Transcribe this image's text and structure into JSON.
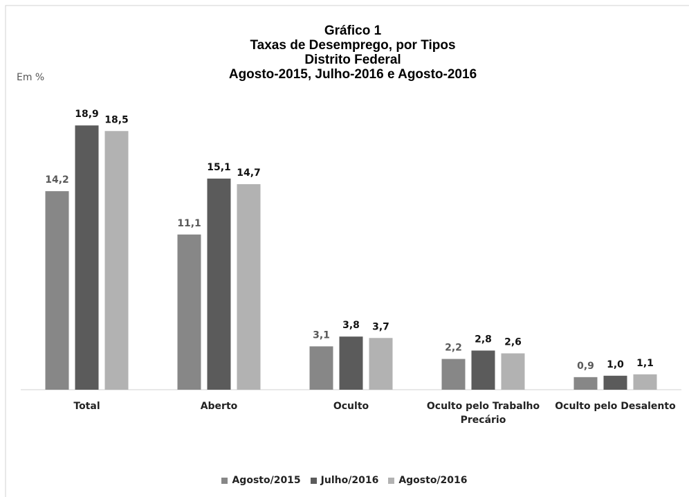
{
  "chart_data": {
    "type": "bar",
    "title": [
      "Gráfico 1",
      "Taxas de Desemprego, por Tipos",
      "Distrito Federal",
      "Agosto-2015, Julho-2016 e Agosto-2016"
    ],
    "y_label": "Em %",
    "categories": [
      "Total",
      "Aberto",
      "Oculto",
      "Oculto pelo Trabalho Precário",
      "Oculto pelo Desalento"
    ],
    "series": [
      {
        "name": "Agosto/2015",
        "color": "#878787",
        "values": [
          14.2,
          11.1,
          3.1,
          2.2,
          0.9
        ],
        "value_labels": [
          "14,2",
          "11,1",
          "3,1",
          "2,2",
          "0,9"
        ]
      },
      {
        "name": "Julho/2016",
        "color": "#5b5b5b",
        "values": [
          18.9,
          15.1,
          3.8,
          2.8,
          1.0
        ],
        "value_labels": [
          "18,9",
          "15,1",
          "3,8",
          "2,8",
          "1,0"
        ]
      },
      {
        "name": "Agosto/2016",
        "color": "#b2b2b2",
        "values": [
          18.5,
          14.7,
          3.7,
          2.6,
          1.1
        ],
        "value_labels": [
          "18,5",
          "14,7",
          "3,7",
          "2,6",
          "1,1"
        ]
      }
    ],
    "ylim": [
      0,
      20
    ],
    "grid": false,
    "legend": "bottom"
  }
}
